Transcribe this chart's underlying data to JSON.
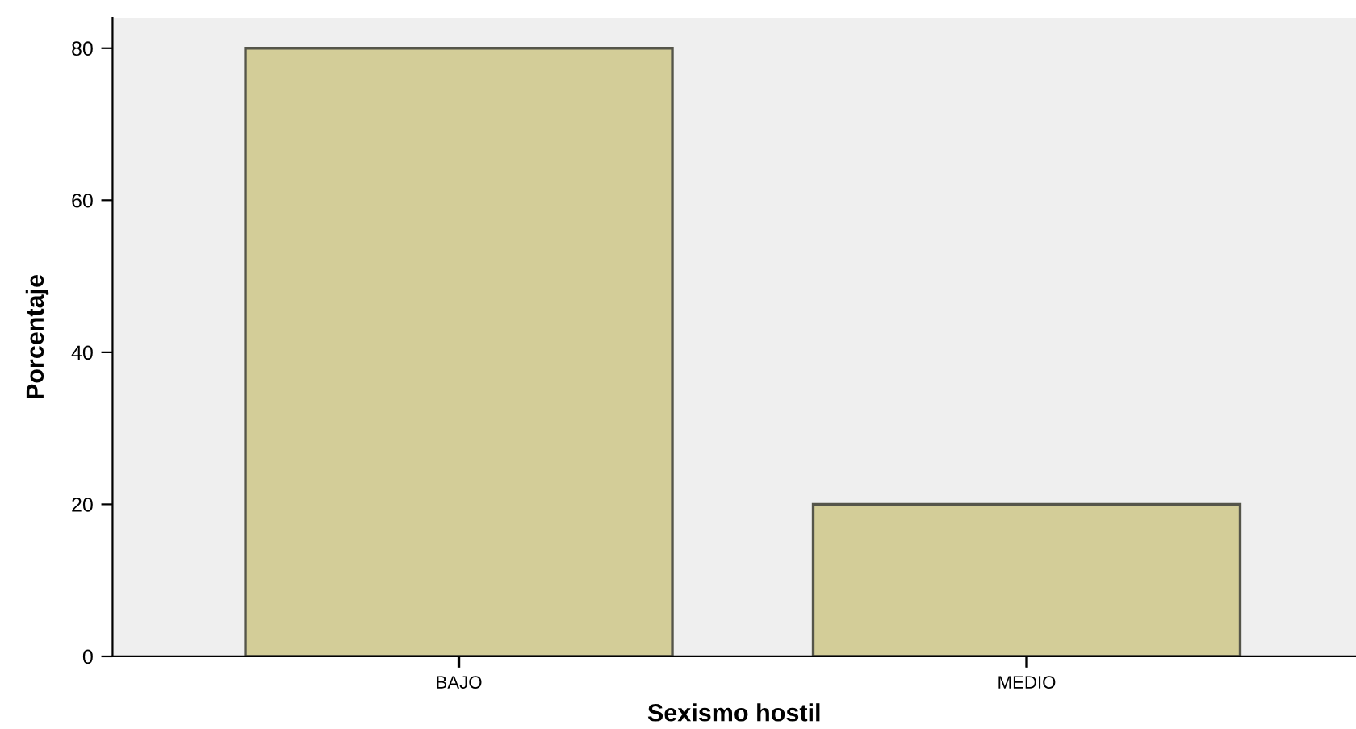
{
  "chart_data": {
    "type": "bar",
    "xlabel": "Sexismo hostil",
    "ylabel": "Porcentaje",
    "categories": [
      "BAJO",
      "MEDIO"
    ],
    "values": [
      80,
      20
    ],
    "color": "#d3cd98",
    "ylim": [
      0,
      84
    ],
    "yticks": [
      0,
      20,
      40,
      60,
      80
    ],
    "grid": false,
    "legend": false
  }
}
